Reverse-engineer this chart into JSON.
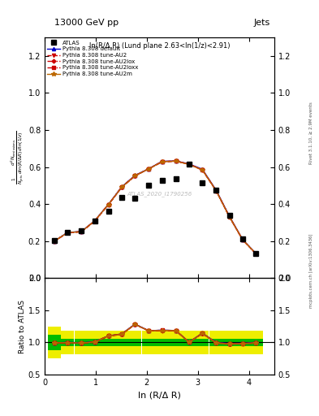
{
  "title_top": "13000 GeV pp",
  "title_right": "Jets",
  "panel_label": "ln(R/Δ R) (Lund plane 2.63<ln(1/z)<2.91)",
  "watermark": "ATLAS_2020_I1790256",
  "xlabel": "ln (R/Δ R)",
  "ylabel_ratio": "Ratio to ATLAS",
  "xlim": [
    0.0,
    4.5
  ],
  "ylim_main": [
    0.0,
    1.3
  ],
  "ylim_ratio": [
    0.5,
    2.0
  ],
  "x_data": [
    0.19,
    0.45,
    0.72,
    0.98,
    1.25,
    1.51,
    1.77,
    2.04,
    2.3,
    2.57,
    2.83,
    3.09,
    3.36,
    3.62,
    3.88,
    4.14
  ],
  "atlas_y": [
    0.202,
    0.247,
    0.254,
    0.307,
    0.362,
    0.436,
    0.432,
    0.501,
    0.53,
    0.535,
    0.614,
    0.514,
    0.476,
    0.34,
    0.211,
    0.133
  ],
  "pythia_default_y": [
    0.2,
    0.247,
    0.252,
    0.31,
    0.399,
    0.493,
    0.555,
    0.591,
    0.631,
    0.633,
    0.617,
    0.588,
    0.475,
    0.334,
    0.208,
    0.133
  ],
  "pythia_AU2_y": [
    0.199,
    0.244,
    0.25,
    0.307,
    0.396,
    0.49,
    0.551,
    0.591,
    0.627,
    0.632,
    0.615,
    0.583,
    0.471,
    0.33,
    0.206,
    0.131
  ],
  "pythia_AU2lox_y": [
    0.2,
    0.246,
    0.251,
    0.309,
    0.398,
    0.492,
    0.553,
    0.59,
    0.629,
    0.632,
    0.615,
    0.585,
    0.473,
    0.332,
    0.207,
    0.132
  ],
  "pythia_AU2loxx_y": [
    0.2,
    0.246,
    0.251,
    0.309,
    0.398,
    0.492,
    0.554,
    0.591,
    0.63,
    0.633,
    0.615,
    0.586,
    0.473,
    0.332,
    0.207,
    0.132
  ],
  "pythia_AU2m_y": [
    0.2,
    0.246,
    0.251,
    0.309,
    0.398,
    0.491,
    0.553,
    0.59,
    0.629,
    0.632,
    0.614,
    0.585,
    0.472,
    0.331,
    0.207,
    0.132
  ],
  "ratio_yellow_lo": [
    0.75,
    0.82,
    0.82,
    0.82,
    0.82,
    0.82,
    0.82,
    0.82,
    0.82,
    0.82,
    0.82,
    0.82,
    0.82,
    0.82,
    0.82,
    0.82
  ],
  "ratio_yellow_hi": [
    1.25,
    1.18,
    1.18,
    1.18,
    1.18,
    1.18,
    1.18,
    1.18,
    1.18,
    1.18,
    1.18,
    1.18,
    1.18,
    1.18,
    1.18,
    1.18
  ],
  "ratio_green_lo": [
    0.88,
    0.94,
    0.94,
    0.94,
    0.94,
    0.94,
    0.94,
    0.94,
    0.94,
    0.94,
    0.94,
    0.94,
    0.94,
    0.94,
    0.94,
    0.94
  ],
  "ratio_green_hi": [
    1.12,
    1.06,
    1.06,
    1.06,
    1.06,
    1.06,
    1.06,
    1.06,
    1.06,
    1.06,
    1.06,
    1.06,
    1.06,
    1.06,
    1.06,
    1.06
  ],
  "color_atlas": "#000000",
  "color_default": "#0000cc",
  "color_AU2": "#cc0000",
  "color_AU2lox": "#cc0000",
  "color_AU2loxx": "#cc0000",
  "color_AU2m": "#bb6600",
  "color_green": "#00bb00",
  "color_yellow": "#eeee00",
  "marker_atlas": "s",
  "marker_default": "^",
  "marker_AU2": "v",
  "marker_AU2lox": "D",
  "marker_AU2loxx": "s",
  "marker_AU2m": "*"
}
